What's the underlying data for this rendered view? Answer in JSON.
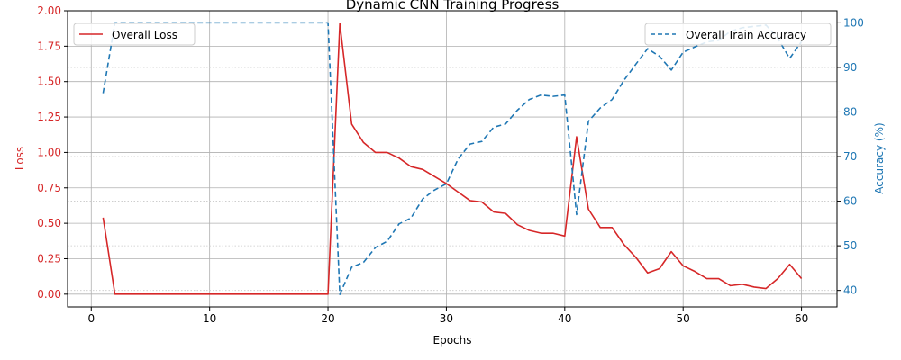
{
  "chart_data": {
    "type": "line",
    "title": "Dynamic CNN Training Progress",
    "xlabel": "Epochs",
    "ylabel_left": "Loss",
    "ylabel_right": "Accuracy (%)",
    "xlim": [
      -2,
      63
    ],
    "ylim_left": [
      -0.09,
      2.0
    ],
    "ylim_right": [
      36.3,
      102.7
    ],
    "x_ticks": [
      0,
      10,
      20,
      30,
      40,
      50,
      60
    ],
    "y_ticks_left": [
      0.0,
      0.25,
      0.5,
      0.75,
      1.0,
      1.25,
      1.5,
      1.75,
      2.0
    ],
    "y_ticks_left_labels": [
      "0.00",
      "0.25",
      "0.50",
      "0.75",
      "1.00",
      "1.25",
      "1.50",
      "1.75",
      "2.00"
    ],
    "y_ticks_right": [
      40,
      50,
      60,
      70,
      80,
      90,
      100
    ],
    "grid": true,
    "colors": {
      "loss": "#d62728",
      "accuracy": "#1f77b4",
      "grid_major": "#b0b0b0",
      "axis": "#000000"
    },
    "x": [
      1,
      2,
      3,
      4,
      5,
      6,
      7,
      8,
      9,
      10,
      11,
      12,
      13,
      14,
      15,
      16,
      17,
      18,
      19,
      20,
      21,
      22,
      23,
      24,
      25,
      26,
      27,
      28,
      29,
      30,
      31,
      32,
      33,
      34,
      35,
      36,
      37,
      38,
      39,
      40,
      41,
      42,
      43,
      44,
      45,
      46,
      47,
      48,
      49,
      50,
      51,
      52,
      53,
      54,
      55,
      56,
      57,
      58,
      59,
      60
    ],
    "series": [
      {
        "name": "Overall Loss",
        "axis": "left",
        "style": "solid",
        "legend_position": "top-left",
        "values": [
          0.54,
          0.0,
          0.0,
          0.0,
          0.0,
          0.0,
          0.0,
          0.0,
          0.0,
          0.0,
          0.0,
          0.0,
          0.0,
          0.0,
          0.0,
          0.0,
          0.0,
          0.0,
          0.0,
          0.0,
          1.91,
          1.2,
          1.07,
          1.0,
          1.0,
          0.96,
          0.9,
          0.88,
          0.83,
          0.78,
          0.72,
          0.66,
          0.65,
          0.58,
          0.57,
          0.49,
          0.45,
          0.43,
          0.43,
          0.41,
          1.11,
          0.6,
          0.47,
          0.47,
          0.35,
          0.26,
          0.15,
          0.18,
          0.3,
          0.2,
          0.16,
          0.11,
          0.11,
          0.06,
          0.07,
          0.05,
          0.04,
          0.11,
          0.21,
          0.11
        ]
      },
      {
        "name": "Overall Train Accuracy",
        "axis": "right",
        "style": "dashed",
        "legend_position": "top-right",
        "values": [
          84.2,
          100,
          100,
          100,
          100,
          100,
          100,
          100,
          100,
          100,
          100,
          100,
          100,
          100,
          100,
          100,
          100,
          100,
          100,
          100,
          39.1,
          45.2,
          46.3,
          49.6,
          51.0,
          54.9,
          56.2,
          60.5,
          62.5,
          63.9,
          69.5,
          72.8,
          73.4,
          76.6,
          77.3,
          80.4,
          82.8,
          83.8,
          83.5,
          83.8,
          57.0,
          77.9,
          80.9,
          82.8,
          87.1,
          90.7,
          94.2,
          92.5,
          89.4,
          93.4,
          94.6,
          95.7,
          96.1,
          98.1,
          98.9,
          99.2,
          99.5,
          96.5,
          92.0,
          95.8
        ]
      }
    ]
  }
}
